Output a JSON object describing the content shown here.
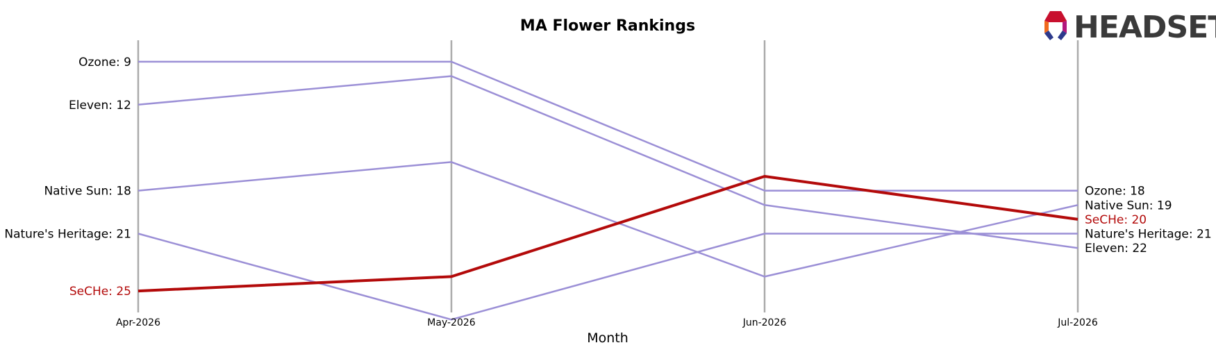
{
  "chart_data": {
    "type": "line",
    "title": "MA Flower Rankings",
    "xlabel": "Month",
    "ylabel": "",
    "categories": [
      "Apr-2026",
      "May-2026",
      "Jun-2026",
      "Jul-2026"
    ],
    "ylim": [
      26.5,
      7.5
    ],
    "y_inverted": true,
    "grid": false,
    "series": [
      {
        "name": "Ozone",
        "values": [
          9,
          9,
          18,
          18
        ],
        "color": "#9b8fd6",
        "highlight": false
      },
      {
        "name": "Eleven",
        "values": [
          12,
          10,
          19,
          22
        ],
        "color": "#9b8fd6",
        "highlight": false
      },
      {
        "name": "Native Sun",
        "values": [
          18,
          16,
          24,
          19
        ],
        "color": "#9b8fd6",
        "highlight": false
      },
      {
        "name": "Nature's Heritage",
        "values": [
          21,
          27,
          21,
          21
        ],
        "color": "#9b8fd6",
        "highlight": false
      },
      {
        "name": "SeCHe",
        "values": [
          25,
          24,
          17,
          20
        ],
        "color": "#b30a0a",
        "highlight": true
      }
    ],
    "left_labels": [
      {
        "text": "Ozone: 9",
        "rank": 9,
        "color": "#000000"
      },
      {
        "text": "Eleven: 12",
        "rank": 12,
        "color": "#000000"
      },
      {
        "text": "Native Sun: 18",
        "rank": 18,
        "color": "#000000"
      },
      {
        "text": "Nature's Heritage: 21",
        "rank": 21,
        "color": "#000000"
      },
      {
        "text": "SeCHe: 25",
        "rank": 25,
        "color": "#b30a0a"
      }
    ],
    "right_labels": [
      {
        "text": "Ozone: 18",
        "rank": 18,
        "color": "#000000"
      },
      {
        "text": "Native Sun: 19",
        "rank": 19,
        "color": "#000000"
      },
      {
        "text": "SeCHe: 20",
        "rank": 20,
        "color": "#b30a0a"
      },
      {
        "text": "Nature's Heritage: 21",
        "rank": 21,
        "color": "#000000"
      },
      {
        "text": "Eleven: 22",
        "rank": 22,
        "color": "#000000"
      }
    ]
  },
  "logo": {
    "text": "HEADSET"
  },
  "colors": {
    "axis": "#aaaaaa",
    "series": "#9b8fd6",
    "highlight": "#b30a0a",
    "logo_text": "#3a3a3a"
  }
}
